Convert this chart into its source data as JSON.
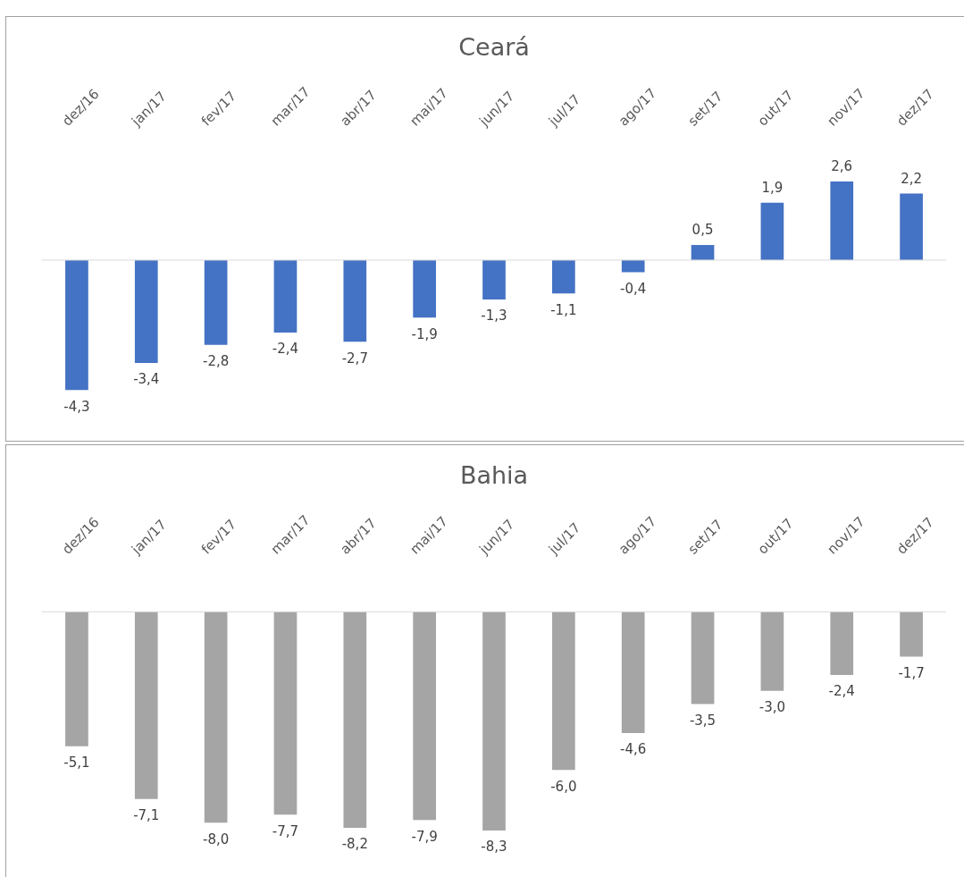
{
  "chart_data": [
    {
      "type": "bar",
      "title": "Ceará",
      "categories": [
        "dez/16",
        "jan/17",
        "fev/17",
        "mar/17",
        "abr/17",
        "mai/17",
        "jun/17",
        "jul/17",
        "ago/17",
        "set/17",
        "out/17",
        "nov/17",
        "dez/17"
      ],
      "values": [
        -4.3,
        -3.4,
        -2.8,
        -2.4,
        -2.7,
        -1.9,
        -1.3,
        -1.1,
        -0.4,
        0.5,
        1.9,
        2.6,
        2.2
      ],
      "value_labels": [
        "-4,3",
        "-3,4",
        "-2,8",
        "-2,4",
        "-2,7",
        "-1,9",
        "-1,3",
        "-1,1",
        "-0,4",
        "0,5",
        "1,9",
        "2,6",
        "2,2"
      ],
      "color": "#4472c4",
      "legend": false
    },
    {
      "type": "bar",
      "title": "Bahia",
      "categories": [
        "dez/16",
        "jan/17",
        "fev/17",
        "mar/17",
        "abr/17",
        "mai/17",
        "jun/17",
        "jul/17",
        "ago/17",
        "set/17",
        "out/17",
        "nov/17",
        "dez/17"
      ],
      "values": [
        -5.1,
        -7.1,
        -8.0,
        -7.7,
        -8.2,
        -7.9,
        -8.3,
        -6.0,
        -4.6,
        -3.5,
        -3.0,
        -2.4,
        -1.7
      ],
      "value_labels": [
        "-5,1",
        "-7,1",
        "-8,0",
        "-7,7",
        "-8,2",
        "-7,9",
        "-8,3",
        "-6,0",
        "-4,6",
        "-3,5",
        "-3,0",
        "-2,4",
        "-1,7"
      ],
      "color": "#a5a5a5",
      "legend": false
    }
  ]
}
